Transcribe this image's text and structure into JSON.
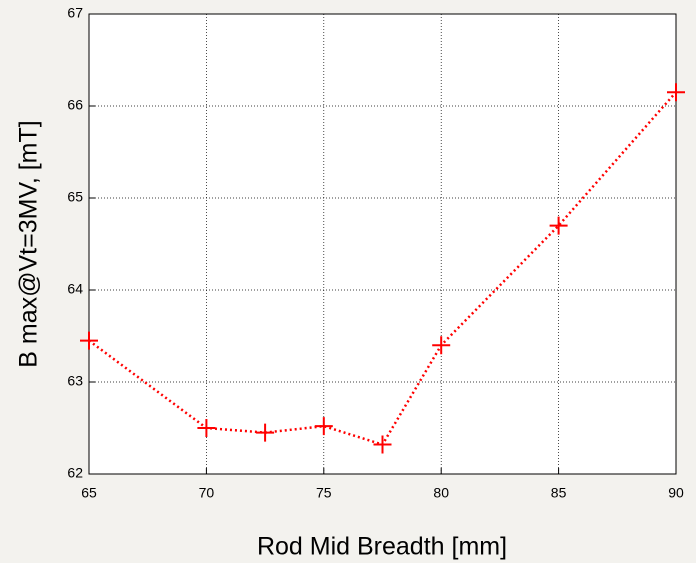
{
  "chart_data": {
    "type": "line",
    "x_label": "Rod Mid Breadth [mm]",
    "y_label": "B max@Vt=3MV, [mT]",
    "x": [
      65,
      70,
      72.5,
      75,
      77.5,
      80,
      85,
      90
    ],
    "series": [
      {
        "name": "B max",
        "color": "#ff0000",
        "values": [
          63.45,
          62.5,
          62.45,
          62.52,
          62.32,
          63.4,
          64.7,
          66.15
        ]
      }
    ],
    "xlim": [
      65,
      90
    ],
    "xticks": [
      65,
      70,
      75,
      80,
      85,
      90
    ],
    "ylim": [
      62,
      67
    ],
    "yticks": [
      62,
      63,
      64,
      65,
      66,
      67
    ],
    "grid": true
  }
}
